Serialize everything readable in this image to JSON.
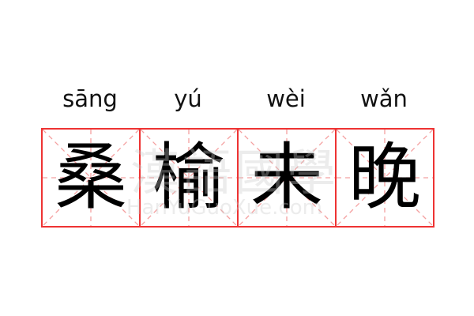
{
  "pinyin": [
    "sāng",
    "yú",
    "wèi",
    "wǎn"
  ],
  "characters": [
    "桑",
    "榆",
    "未",
    "晚"
  ],
  "watermark": {
    "chinese": "漢語國學",
    "latin": "HanYuGuoXue.com"
  },
  "colors": {
    "grid_border": "#ee3333",
    "grid_guides": "#f4a0a0",
    "text": "#000000"
  }
}
